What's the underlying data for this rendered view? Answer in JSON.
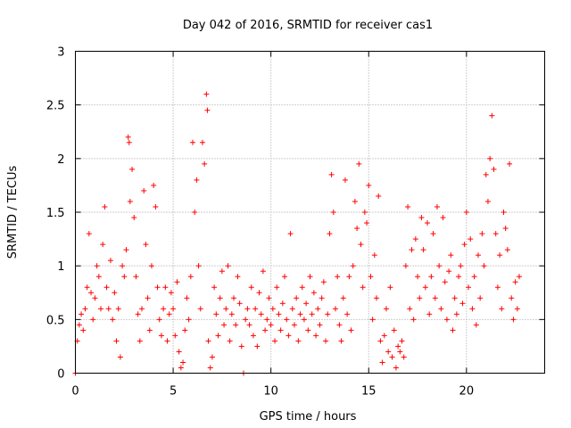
{
  "chart_data": {
    "type": "scatter",
    "title": "Day 042 of 2016, SRMTID for receiver cas1",
    "xlabel": "GPS time / hours",
    "ylabel": "SRMTID / TECUs",
    "xlim": [
      0,
      24
    ],
    "ylim": [
      0,
      3
    ],
    "xticks": [
      0,
      5,
      10,
      15,
      20
    ],
    "xtick_labels": [
      "0",
      "5",
      "10",
      "15",
      "20"
    ],
    "yticks": [
      0,
      0.5,
      1,
      1.5,
      2,
      2.5,
      3
    ],
    "ytick_labels": [
      "0",
      "0.5",
      "1",
      "1.5",
      "2",
      "2.5",
      "3"
    ],
    "grid": true,
    "marker": "+",
    "series": [
      {
        "name": "SRMTID",
        "color": "#ff0000",
        "points": [
          [
            0.0,
            0.0
          ],
          [
            0.1,
            0.3
          ],
          [
            0.2,
            0.45
          ],
          [
            0.3,
            0.55
          ],
          [
            0.4,
            0.4
          ],
          [
            0.5,
            0.6
          ],
          [
            0.6,
            0.8
          ],
          [
            0.7,
            1.3
          ],
          [
            0.8,
            0.75
          ],
          [
            0.9,
            0.5
          ],
          [
            1.0,
            0.7
          ],
          [
            1.1,
            1.0
          ],
          [
            1.2,
            0.9
          ],
          [
            1.3,
            0.6
          ],
          [
            1.4,
            1.2
          ],
          [
            1.5,
            1.55
          ],
          [
            1.6,
            0.8
          ],
          [
            1.7,
            0.6
          ],
          [
            1.8,
            1.05
          ],
          [
            1.9,
            0.5
          ],
          [
            2.0,
            0.75
          ],
          [
            2.1,
            0.3
          ],
          [
            2.2,
            0.6
          ],
          [
            2.3,
            0.15
          ],
          [
            2.4,
            1.0
          ],
          [
            2.5,
            0.9
          ],
          [
            2.6,
            1.15
          ],
          [
            2.7,
            2.2
          ],
          [
            2.75,
            2.15
          ],
          [
            2.8,
            1.6
          ],
          [
            2.9,
            1.9
          ],
          [
            3.0,
            1.45
          ],
          [
            3.1,
            0.9
          ],
          [
            3.2,
            0.55
          ],
          [
            3.3,
            0.3
          ],
          [
            3.4,
            0.6
          ],
          [
            3.5,
            1.7
          ],
          [
            3.6,
            1.2
          ],
          [
            3.7,
            0.7
          ],
          [
            3.8,
            0.4
          ],
          [
            3.9,
            1.0
          ],
          [
            4.0,
            1.75
          ],
          [
            4.1,
            1.55
          ],
          [
            4.2,
            0.8
          ],
          [
            4.3,
            0.5
          ],
          [
            4.4,
            0.35
          ],
          [
            4.5,
            0.6
          ],
          [
            4.6,
            0.8
          ],
          [
            4.7,
            0.3
          ],
          [
            4.8,
            0.55
          ],
          [
            4.9,
            0.75
          ],
          [
            5.0,
            0.6
          ],
          [
            5.1,
            0.35
          ],
          [
            5.2,
            0.85
          ],
          [
            5.3,
            0.2
          ],
          [
            5.4,
            0.05
          ],
          [
            5.5,
            0.1
          ],
          [
            5.6,
            0.4
          ],
          [
            5.7,
            0.7
          ],
          [
            5.8,
            0.5
          ],
          [
            5.9,
            0.9
          ],
          [
            6.0,
            2.15
          ],
          [
            6.1,
            1.5
          ],
          [
            6.2,
            1.8
          ],
          [
            6.3,
            1.0
          ],
          [
            6.4,
            0.6
          ],
          [
            6.5,
            2.15
          ],
          [
            6.6,
            1.95
          ],
          [
            6.7,
            2.6
          ],
          [
            6.75,
            2.45
          ],
          [
            6.8,
            0.3
          ],
          [
            6.9,
            0.05
          ],
          [
            7.0,
            0.15
          ],
          [
            7.1,
            0.8
          ],
          [
            7.2,
            0.55
          ],
          [
            7.3,
            0.35
          ],
          [
            7.4,
            0.7
          ],
          [
            7.5,
            0.95
          ],
          [
            7.6,
            0.45
          ],
          [
            7.7,
            0.6
          ],
          [
            7.8,
            1.0
          ],
          [
            7.9,
            0.3
          ],
          [
            8.0,
            0.55
          ],
          [
            8.1,
            0.7
          ],
          [
            8.2,
            0.45
          ],
          [
            8.3,
            0.9
          ],
          [
            8.4,
            0.65
          ],
          [
            8.5,
            0.25
          ],
          [
            8.6,
            0.0
          ],
          [
            8.7,
            0.5
          ],
          [
            8.8,
            0.6
          ],
          [
            8.9,
            0.45
          ],
          [
            9.0,
            0.8
          ],
          [
            9.1,
            0.35
          ],
          [
            9.2,
            0.6
          ],
          [
            9.3,
            0.25
          ],
          [
            9.4,
            0.75
          ],
          [
            9.5,
            0.55
          ],
          [
            9.6,
            0.95
          ],
          [
            9.7,
            0.4
          ],
          [
            9.8,
            0.5
          ],
          [
            9.9,
            0.7
          ],
          [
            10.0,
            0.45
          ],
          [
            10.1,
            0.6
          ],
          [
            10.2,
            0.3
          ],
          [
            10.3,
            0.8
          ],
          [
            10.4,
            0.55
          ],
          [
            10.5,
            0.4
          ],
          [
            10.6,
            0.65
          ],
          [
            10.7,
            0.9
          ],
          [
            10.8,
            0.5
          ],
          [
            10.9,
            0.35
          ],
          [
            11.0,
            1.3
          ],
          [
            11.1,
            0.6
          ],
          [
            11.2,
            0.45
          ],
          [
            11.3,
            0.7
          ],
          [
            11.4,
            0.3
          ],
          [
            11.5,
            0.55
          ],
          [
            11.6,
            0.8
          ],
          [
            11.7,
            0.5
          ],
          [
            11.8,
            0.65
          ],
          [
            11.9,
            0.4
          ],
          [
            12.0,
            0.9
          ],
          [
            12.1,
            0.55
          ],
          [
            12.2,
            0.75
          ],
          [
            12.3,
            0.35
          ],
          [
            12.4,
            0.6
          ],
          [
            12.5,
            0.45
          ],
          [
            12.6,
            0.7
          ],
          [
            12.7,
            0.85
          ],
          [
            12.8,
            0.3
          ],
          [
            12.9,
            0.55
          ],
          [
            13.0,
            1.3
          ],
          [
            13.1,
            1.85
          ],
          [
            13.2,
            1.5
          ],
          [
            13.3,
            0.6
          ],
          [
            13.4,
            0.9
          ],
          [
            13.5,
            0.45
          ],
          [
            13.6,
            0.3
          ],
          [
            13.7,
            0.7
          ],
          [
            13.8,
            1.8
          ],
          [
            13.9,
            0.55
          ],
          [
            14.0,
            0.9
          ],
          [
            14.1,
            0.4
          ],
          [
            14.2,
            1.0
          ],
          [
            14.3,
            1.6
          ],
          [
            14.4,
            1.35
          ],
          [
            14.5,
            1.95
          ],
          [
            14.6,
            1.2
          ],
          [
            14.7,
            0.8
          ],
          [
            14.8,
            1.5
          ],
          [
            14.9,
            1.4
          ],
          [
            15.0,
            1.75
          ],
          [
            15.1,
            0.9
          ],
          [
            15.2,
            0.5
          ],
          [
            15.3,
            1.1
          ],
          [
            15.4,
            0.7
          ],
          [
            15.5,
            1.65
          ],
          [
            15.6,
            0.3
          ],
          [
            15.7,
            0.1
          ],
          [
            15.8,
            0.35
          ],
          [
            15.9,
            0.6
          ],
          [
            16.0,
            0.2
          ],
          [
            16.1,
            0.8
          ],
          [
            16.2,
            0.15
          ],
          [
            16.3,
            0.4
          ],
          [
            16.4,
            0.05
          ],
          [
            16.5,
            0.25
          ],
          [
            16.6,
            0.2
          ],
          [
            16.7,
            0.3
          ],
          [
            16.8,
            0.15
          ],
          [
            16.9,
            1.0
          ],
          [
            17.0,
            1.55
          ],
          [
            17.1,
            0.6
          ],
          [
            17.2,
            1.15
          ],
          [
            17.3,
            0.5
          ],
          [
            17.4,
            1.25
          ],
          [
            17.5,
            0.9
          ],
          [
            17.6,
            0.7
          ],
          [
            17.7,
            1.45
          ],
          [
            17.8,
            1.15
          ],
          [
            17.9,
            0.8
          ],
          [
            18.0,
            1.4
          ],
          [
            18.1,
            0.55
          ],
          [
            18.2,
            0.9
          ],
          [
            18.3,
            1.3
          ],
          [
            18.4,
            0.7
          ],
          [
            18.5,
            1.55
          ],
          [
            18.6,
            1.0
          ],
          [
            18.7,
            0.6
          ],
          [
            18.8,
            1.45
          ],
          [
            18.9,
            0.85
          ],
          [
            19.0,
            0.5
          ],
          [
            19.1,
            0.95
          ],
          [
            19.2,
            1.1
          ],
          [
            19.3,
            0.4
          ],
          [
            19.4,
            0.7
          ],
          [
            19.5,
            0.55
          ],
          [
            19.6,
            0.9
          ],
          [
            19.7,
            1.0
          ],
          [
            19.8,
            0.65
          ],
          [
            19.9,
            1.2
          ],
          [
            20.0,
            1.5
          ],
          [
            20.1,
            0.8
          ],
          [
            20.2,
            1.25
          ],
          [
            20.3,
            0.6
          ],
          [
            20.4,
            0.9
          ],
          [
            20.5,
            0.45
          ],
          [
            20.6,
            1.1
          ],
          [
            20.7,
            0.7
          ],
          [
            20.8,
            1.3
          ],
          [
            20.9,
            1.0
          ],
          [
            21.0,
            1.85
          ],
          [
            21.1,
            1.6
          ],
          [
            21.2,
            2.0
          ],
          [
            21.3,
            2.4
          ],
          [
            21.4,
            1.9
          ],
          [
            21.5,
            1.3
          ],
          [
            21.6,
            0.8
          ],
          [
            21.7,
            1.1
          ],
          [
            21.8,
            0.6
          ],
          [
            21.9,
            1.5
          ],
          [
            22.0,
            1.35
          ],
          [
            22.1,
            1.15
          ],
          [
            22.2,
            1.95
          ],
          [
            22.3,
            0.7
          ],
          [
            22.4,
            0.5
          ],
          [
            22.5,
            0.85
          ],
          [
            22.6,
            0.6
          ],
          [
            22.7,
            0.9
          ]
        ]
      }
    ]
  }
}
